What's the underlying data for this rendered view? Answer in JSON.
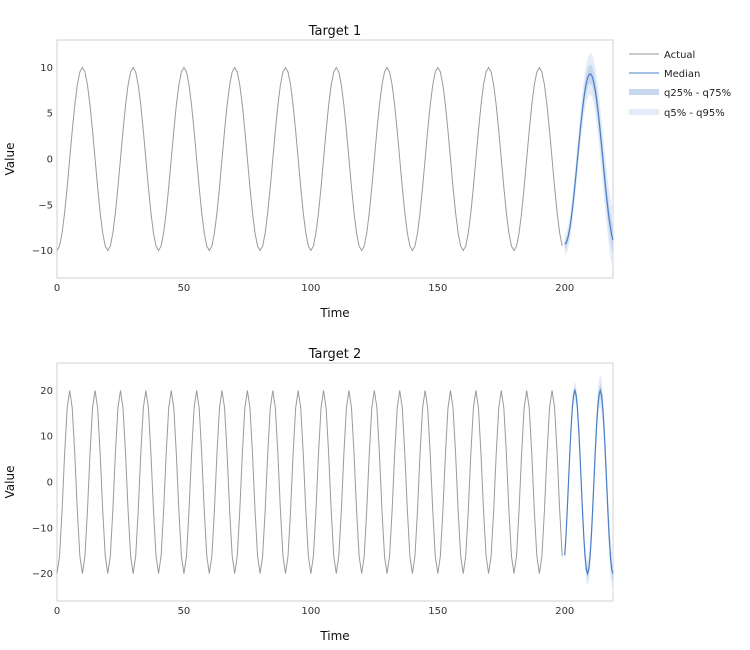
{
  "legend": [
    {
      "label": "Actual",
      "kind": "line",
      "color": "#9a9a9a"
    },
    {
      "label": "Median",
      "kind": "line",
      "color": "#4a7fc8"
    },
    {
      "label": "q25% - q75%",
      "kind": "band",
      "color": "#c7d7ee"
    },
    {
      "label": "q5% - q95%",
      "kind": "band",
      "color": "#e4ecf7"
    }
  ],
  "colors": {
    "actual": "#9a9a9a",
    "median": "#4a7fc8",
    "q25_q75": "#c7d7ee",
    "q5_q95": "#e4ecf7"
  },
  "chart_data": [
    {
      "type": "line",
      "title": "Target 1",
      "xlabel": "Time",
      "ylabel": "Value",
      "xlim": [
        0,
        219
      ],
      "ylim": [
        -13,
        13
      ],
      "xticks": [
        0,
        50,
        100,
        150,
        200
      ],
      "yticks": [
        -10,
        -5,
        0,
        5,
        10
      ],
      "actual": {
        "x_start": 0,
        "x_end": 199,
        "period": 20,
        "amplitude": 10,
        "phase": -10
      },
      "forecast": {
        "x_start": 200,
        "x_end": 219,
        "period": 20,
        "amplitude": 9.3,
        "phase": -10,
        "q25_q75_halfwidth": 1.0,
        "q5_q95_halfwidth": 2.2
      }
    },
    {
      "type": "line",
      "title": "Target 2",
      "xlabel": "Time",
      "ylabel": "Value",
      "xlim": [
        0,
        219
      ],
      "ylim": [
        -26,
        26
      ],
      "xticks": [
        0,
        50,
        100,
        150,
        200
      ],
      "yticks": [
        -20,
        -10,
        0,
        10,
        20
      ],
      "actual": {
        "x_start": 0,
        "x_end": 199,
        "period": 10,
        "amplitude": 20,
        "phase": -20
      },
      "forecast": {
        "x_start": 200,
        "x_end": 219,
        "period": 10,
        "amplitude": 20,
        "phase": -16,
        "q25_q75_halfwidth": 1.2,
        "q5_q95_halfwidth": 2.8
      }
    }
  ]
}
